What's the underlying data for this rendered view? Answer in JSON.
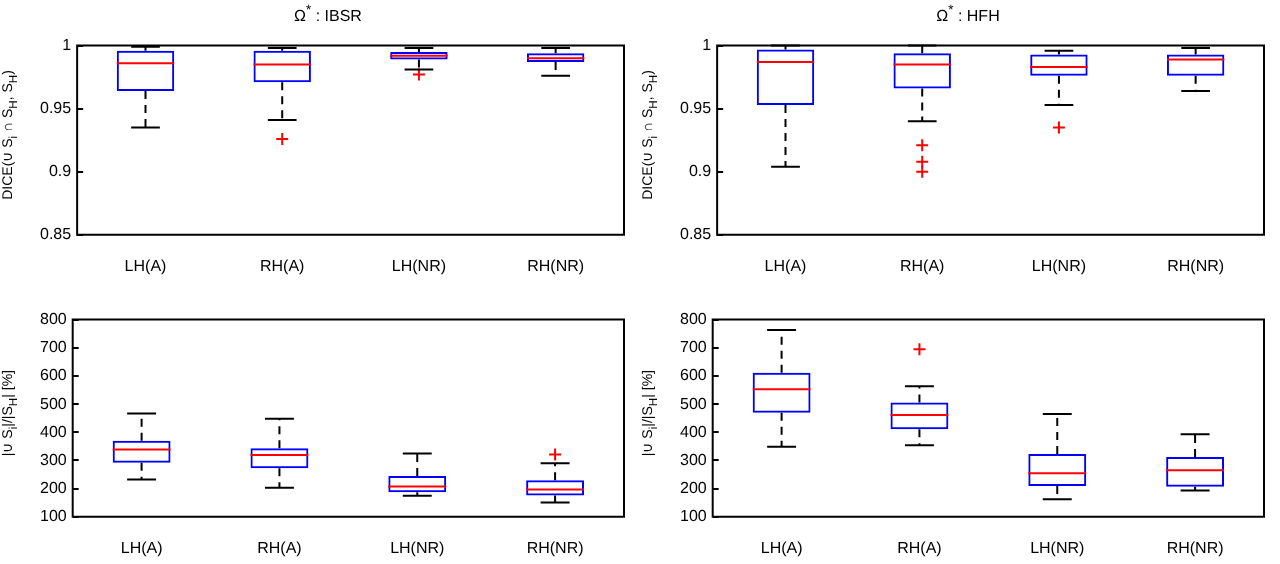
{
  "chart_data": [
    {
      "type": "box",
      "title": "Ω$^{*}$ : IBSR",
      "ylabel": "DICE(∪ S$_{i}$ ∩ S$_{H}$, S$_{H}$)",
      "categories": [
        "LH(A)",
        "RH(A)",
        "LH(NR)",
        "RH(NR)"
      ],
      "color": "#0000ff",
      "ylim": [
        0.85,
        1
      ],
      "yticks": [
        0.85,
        0.9,
        0.95,
        1
      ],
      "boxes": [
        {
          "low": 0.935,
          "q1": 0.964,
          "median": 0.986,
          "q3": 0.996,
          "high": 0.999
        },
        {
          "low": 0.941,
          "q1": 0.971,
          "median": 0.985,
          "q3": 0.996,
          "high": 0.998,
          "outliers": [
            0.926
          ]
        },
        {
          "low": 0.981,
          "q1": 0.989,
          "median": 0.992,
          "q3": 0.995,
          "high": 0.998,
          "outliers": [
            0.977
          ]
        },
        {
          "low": 0.976,
          "q1": 0.987,
          "median": 0.99,
          "q3": 0.994,
          "high": 0.998
        }
      ]
    },
    {
      "type": "box",
      "title": "Ω$^{*}$ : HFH",
      "ylabel": "DICE(∪ S$_{i}$ ∩ S$_{H}$, S$_{H}$)",
      "categories": [
        "LH(A)",
        "RH(A)",
        "LH(NR)",
        "RH(NR)"
      ],
      "color": "#0000ff",
      "ylim": [
        0.85,
        1
      ],
      "yticks": [
        0.85,
        0.9,
        0.95,
        1
      ],
      "boxes": [
        {
          "low": 0.904,
          "q1": 0.953,
          "median": 0.987,
          "q3": 0.997,
          "high": 1.0
        },
        {
          "low": 0.94,
          "q1": 0.966,
          "median": 0.985,
          "q3": 0.994,
          "high": 1.0,
          "outliers": [
            0.921,
            0.908,
            0.9
          ]
        },
        {
          "low": 0.953,
          "q1": 0.976,
          "median": 0.983,
          "q3": 0.993,
          "high": 0.996,
          "outliers": [
            0.935
          ]
        },
        {
          "low": 0.964,
          "q1": 0.976,
          "median": 0.989,
          "q3": 0.993,
          "high": 0.998
        }
      ]
    },
    {
      "type": "box",
      "ylabel": "|∪ S$_{i}$|/|S$_{H}$| [%]",
      "categories": [
        "LH(A)",
        "RH(A)",
        "LH(NR)",
        "RH(NR)"
      ],
      "color": "#0000ff",
      "ylim": [
        100,
        800
      ],
      "yticks": [
        100,
        200,
        300,
        400,
        500,
        600,
        700,
        800
      ],
      "boxes": [
        {
          "low": 232,
          "q1": 292,
          "median": 339,
          "q3": 370,
          "high": 467
        },
        {
          "low": 203,
          "q1": 272,
          "median": 319,
          "q3": 343,
          "high": 448
        },
        {
          "low": 175,
          "q1": 187,
          "median": 208,
          "q3": 245,
          "high": 325
        },
        {
          "low": 151,
          "q1": 176,
          "median": 197,
          "q3": 230,
          "high": 290,
          "outliers": [
            321
          ]
        }
      ]
    },
    {
      "type": "box",
      "ylabel": "|∪ S$_{i}$|/|S$_{H}$| [%]",
      "categories": [
        "LH(A)",
        "RH(A)",
        "LH(NR)",
        "RH(NR)"
      ],
      "color": "#0000ff",
      "ylim": [
        100,
        800
      ],
      "yticks": [
        100,
        200,
        300,
        400,
        500,
        600,
        700,
        800
      ],
      "boxes": [
        {
          "low": 349,
          "q1": 469,
          "median": 553,
          "q3": 611,
          "high": 763
        },
        {
          "low": 354,
          "q1": 411,
          "median": 461,
          "q3": 506,
          "high": 563,
          "outliers": [
            695
          ]
        },
        {
          "low": 162,
          "q1": 209,
          "median": 255,
          "q3": 323,
          "high": 465
        },
        {
          "low": 193,
          "q1": 207,
          "median": 265,
          "q3": 312,
          "high": 393
        }
      ]
    }
  ]
}
